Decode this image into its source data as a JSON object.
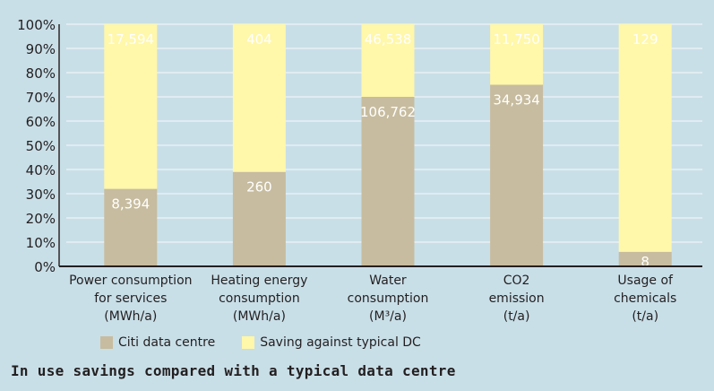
{
  "chart_data": {
    "type": "bar",
    "stacked": true,
    "title": "In use savings compared with a typical data centre",
    "xlabel": "",
    "ylabel": "",
    "ylim": [
      0,
      100
    ],
    "y_unit": "%",
    "yticks": [
      "0%",
      "10%",
      "20%",
      "30%",
      "40%",
      "50%",
      "60%",
      "70%",
      "80%",
      "90%",
      "100%"
    ],
    "grid": true,
    "legend_position": "bottom",
    "categories": [
      [
        "Power consumption",
        "for services",
        "(MWh/a)"
      ],
      [
        "Heating energy",
        "consumption",
        "(MWh/a)"
      ],
      [
        "Water",
        "consumption",
        "(M³/a)"
      ],
      [
        "CO2",
        "emission",
        "(t/a)"
      ],
      [
        "Usage of",
        "chemicals",
        "(t/a)"
      ]
    ],
    "series": [
      {
        "name": "Citi data centre",
        "color": "#c7bc9f",
        "percent": [
          32,
          39,
          70,
          75,
          6
        ],
        "labels": [
          "8,394",
          "260",
          "106,762",
          "34,934",
          "8"
        ]
      },
      {
        "name": "Saving against typical DC",
        "color": "#fff7aa",
        "percent": [
          68,
          61,
          30,
          25,
          94
        ],
        "labels": [
          "17,594",
          "404",
          "46,538",
          "11,750",
          "129"
        ]
      }
    ]
  },
  "colors": {
    "background": "#c9dfe8",
    "gridline": "#e8f1f5",
    "axis": "#555555"
  }
}
